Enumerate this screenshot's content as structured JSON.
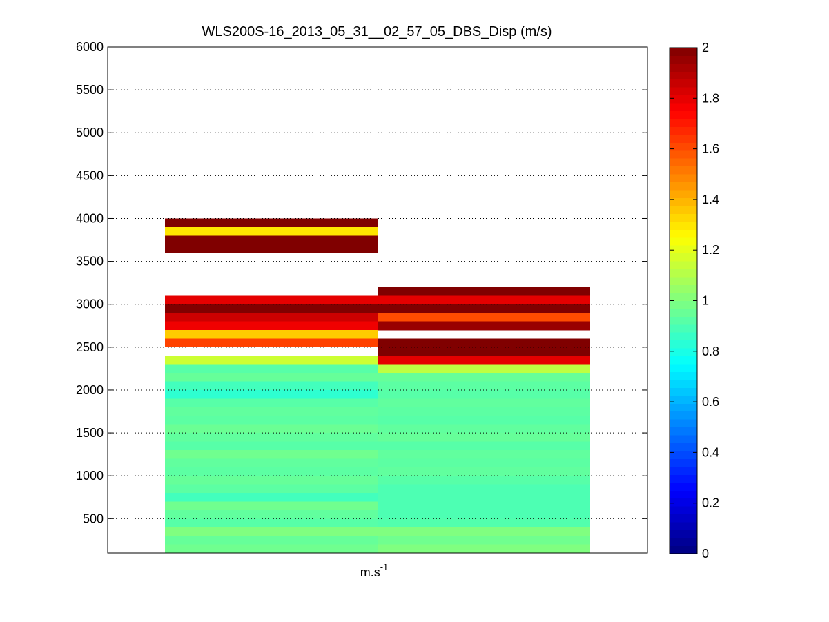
{
  "chart_data": {
    "type": "heatmap",
    "title": "WLS200S-16_2013_05_31__02_57_05_DBS_Disp (m/s)",
    "xlabel_base": "m.s",
    "xlabel_sup": "-1",
    "ylabel": "",
    "ylim": [
      100,
      6000
    ],
    "yticks": [
      500,
      1000,
      1500,
      2000,
      2500,
      3000,
      3500,
      4000,
      4500,
      5000,
      5500,
      6000
    ],
    "grid": "y-dotted",
    "colormap": "jet",
    "clim": [
      0,
      2
    ],
    "colorbar_ticks": [
      "0",
      "0.2",
      "0.4",
      "0.6",
      "0.8",
      "1",
      "1.2",
      "1.4",
      "1.6",
      "1.8",
      "2"
    ],
    "colorbar_placement": "right",
    "bin_height": 100,
    "columns": [
      {
        "cells": [
          {
            "y": 3900,
            "v": 2.0
          },
          {
            "y": 3800,
            "v": 1.3
          },
          {
            "y": 3700,
            "v": 2.0
          },
          {
            "y": 3600,
            "v": 2.0
          },
          {
            "y": 3000,
            "v": 1.8
          },
          {
            "y": 2900,
            "v": 2.0
          },
          {
            "y": 2800,
            "v": 1.85
          },
          {
            "y": 2700,
            "v": 1.78
          },
          {
            "y": 2600,
            "v": 1.35
          },
          {
            "y": 2500,
            "v": 1.62
          },
          {
            "y": 2300,
            "v": 1.15
          },
          {
            "y": 2200,
            "v": 0.92
          },
          {
            "y": 2100,
            "v": 0.95
          },
          {
            "y": 2000,
            "v": 0.88
          },
          {
            "y": 1900,
            "v": 0.84
          },
          {
            "y": 1800,
            "v": 0.92
          },
          {
            "y": 1700,
            "v": 0.94
          },
          {
            "y": 1600,
            "v": 0.93
          },
          {
            "y": 1500,
            "v": 0.96
          },
          {
            "y": 1400,
            "v": 0.94
          },
          {
            "y": 1300,
            "v": 0.92
          },
          {
            "y": 1200,
            "v": 0.97
          },
          {
            "y": 1100,
            "v": 0.94
          },
          {
            "y": 1000,
            "v": 0.93
          },
          {
            "y": 900,
            "v": 0.95
          },
          {
            "y": 800,
            "v": 0.93
          },
          {
            "y": 700,
            "v": 0.88
          },
          {
            "y": 600,
            "v": 0.97
          },
          {
            "y": 500,
            "v": 0.94
          },
          {
            "y": 400,
            "v": 0.92
          },
          {
            "y": 300,
            "v": 1.0
          },
          {
            "y": 200,
            "v": 0.95
          },
          {
            "y": 100,
            "v": 0.97
          }
        ]
      },
      {
        "cells": [
          {
            "y": 3100,
            "v": 2.0
          },
          {
            "y": 3000,
            "v": 1.8
          },
          {
            "y": 2900,
            "v": 2.0
          },
          {
            "y": 2800,
            "v": 1.6
          },
          {
            "y": 2700,
            "v": 1.95
          },
          {
            "y": 2500,
            "v": 2.0
          },
          {
            "y": 2400,
            "v": 2.0
          },
          {
            "y": 2300,
            "v": 1.8
          },
          {
            "y": 2200,
            "v": 1.12
          },
          {
            "y": 2100,
            "v": 0.95
          },
          {
            "y": 2000,
            "v": 0.93
          },
          {
            "y": 1900,
            "v": 0.92
          },
          {
            "y": 1800,
            "v": 0.94
          },
          {
            "y": 1700,
            "v": 0.93
          },
          {
            "y": 1600,
            "v": 0.92
          },
          {
            "y": 1500,
            "v": 0.94
          },
          {
            "y": 1400,
            "v": 0.95
          },
          {
            "y": 1300,
            "v": 0.92
          },
          {
            "y": 1200,
            "v": 0.94
          },
          {
            "y": 1100,
            "v": 0.93
          },
          {
            "y": 1000,
            "v": 0.94
          },
          {
            "y": 900,
            "v": 0.92
          },
          {
            "y": 800,
            "v": 0.9
          },
          {
            "y": 700,
            "v": 0.9
          },
          {
            "y": 600,
            "v": 0.9
          },
          {
            "y": 500,
            "v": 0.9
          },
          {
            "y": 400,
            "v": 0.91
          },
          {
            "y": 300,
            "v": 1.0
          },
          {
            "y": 200,
            "v": 0.97
          },
          {
            "y": 100,
            "v": 1.0
          }
        ]
      }
    ]
  }
}
